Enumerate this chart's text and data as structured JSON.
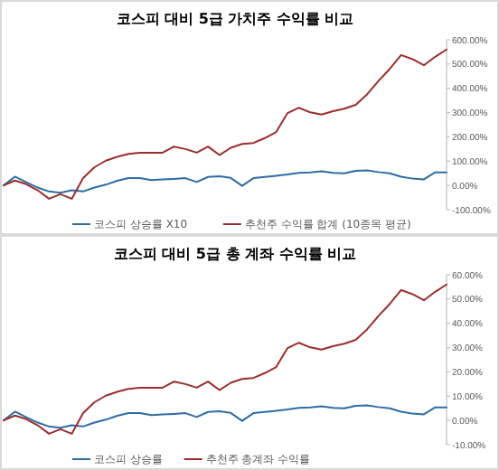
{
  "chart_data": [
    {
      "type": "line",
      "title": "코스피 대비 5급 가치주 수익률 비교",
      "categories": [
        null,
        null,
        null,
        null,
        null,
        null,
        null,
        null,
        null,
        null,
        null,
        null,
        null,
        null,
        null,
        null,
        null,
        null,
        null,
        null,
        null,
        null,
        null,
        null,
        null,
        null,
        null,
        null,
        null,
        null,
        null,
        null,
        null,
        null,
        null,
        null,
        null,
        null,
        null,
        null
      ],
      "series": [
        {
          "name": "코스피 상승률 X10",
          "color": "#2e6ca4",
          "values": [
            0,
            36,
            13,
            -9,
            -25,
            -30,
            -20,
            -25,
            -9,
            3,
            19,
            30,
            30,
            22,
            25,
            27,
            30,
            14,
            35,
            38,
            31,
            -2,
            30,
            35,
            40,
            45,
            52,
            54,
            58,
            52,
            50,
            60,
            62,
            55,
            50,
            36,
            28,
            25,
            54,
            54
          ]
        },
        {
          "name": "추천주 수익률 합계 (10종목 평균)",
          "color": "#9b2d2d",
          "values": [
            0,
            20,
            5,
            -20,
            -55,
            -36,
            -55,
            30,
            75,
            102,
            118,
            130,
            135,
            135,
            135,
            160,
            150,
            135,
            160,
            125,
            155,
            171,
            175,
            195,
            220,
            298,
            320,
            301,
            292,
            306,
            316,
            332,
            375,
            430,
            480,
            537,
            520,
            495,
            530,
            560
          ]
        }
      ],
      "ylim": [
        -100,
        600
      ],
      "yticks": [
        {
          "value": -100,
          "label": "-100.00%"
        },
        {
          "value": 0,
          "label": "0.00%"
        },
        {
          "value": 100,
          "label": "100.00%"
        },
        {
          "value": 200,
          "label": "200.00%"
        },
        {
          "value": 300,
          "label": "300.00%"
        },
        {
          "value": 400,
          "label": "400.00%"
        },
        {
          "value": 500,
          "label": "500.00%"
        },
        {
          "value": 600,
          "label": "600.00%"
        }
      ],
      "legend": "bottom",
      "tick_labels": "y"
    },
    {
      "type": "line",
      "title": "코스피 대비 5급 총 계좌 수익률 비교",
      "categories": [
        null,
        null,
        null,
        null,
        null,
        null,
        null,
        null,
        null,
        null,
        null,
        null,
        null,
        null,
        null,
        null,
        null,
        null,
        null,
        null,
        null,
        null,
        null,
        null,
        null,
        null,
        null,
        null,
        null,
        null,
        null,
        null,
        null,
        null,
        null,
        null,
        null,
        null,
        null,
        null
      ],
      "series": [
        {
          "name": "코스피 상승률",
          "color": "#2e6ca4",
          "values": [
            0,
            3.6,
            1.3,
            -0.9,
            -2.5,
            -3,
            -2,
            -2.5,
            -0.9,
            0.3,
            1.9,
            3,
            3,
            2.2,
            2.5,
            2.7,
            3,
            1.4,
            3.5,
            3.8,
            3.1,
            -0.2,
            3,
            3.5,
            4,
            4.5,
            5.2,
            5.4,
            5.8,
            5.2,
            5,
            6,
            6.2,
            5.5,
            5,
            3.6,
            2.8,
            2.5,
            5.4,
            5.4
          ]
        },
        {
          "name": "추천주 총계좌 수익률",
          "color": "#9b2d2d",
          "values": [
            0,
            2,
            0.5,
            -2,
            -5.5,
            -3.6,
            -5.5,
            3,
            7.5,
            10.2,
            11.8,
            13,
            13.5,
            13.5,
            13.5,
            16,
            15,
            13.5,
            16,
            12.5,
            15.5,
            17.1,
            17.5,
            19.5,
            22,
            29.8,
            32,
            30.1,
            29.2,
            30.6,
            31.6,
            33.2,
            37.5,
            43,
            48,
            53.7,
            52,
            49.5,
            53,
            56
          ]
        }
      ],
      "ylim": [
        -10,
        60
      ],
      "yticks": [
        {
          "value": -10,
          "label": "-10.00%"
        },
        {
          "value": 0,
          "label": "0.00%"
        },
        {
          "value": 10,
          "label": "10.00%"
        },
        {
          "value": 20,
          "label": "20.00%"
        },
        {
          "value": 30,
          "label": "30.00%"
        },
        {
          "value": 40,
          "label": "40.00%"
        },
        {
          "value": 50,
          "label": "50.00%"
        },
        {
          "value": 60,
          "label": "60.00%"
        }
      ],
      "legend": "bottom",
      "tick_labels": "y"
    }
  ]
}
